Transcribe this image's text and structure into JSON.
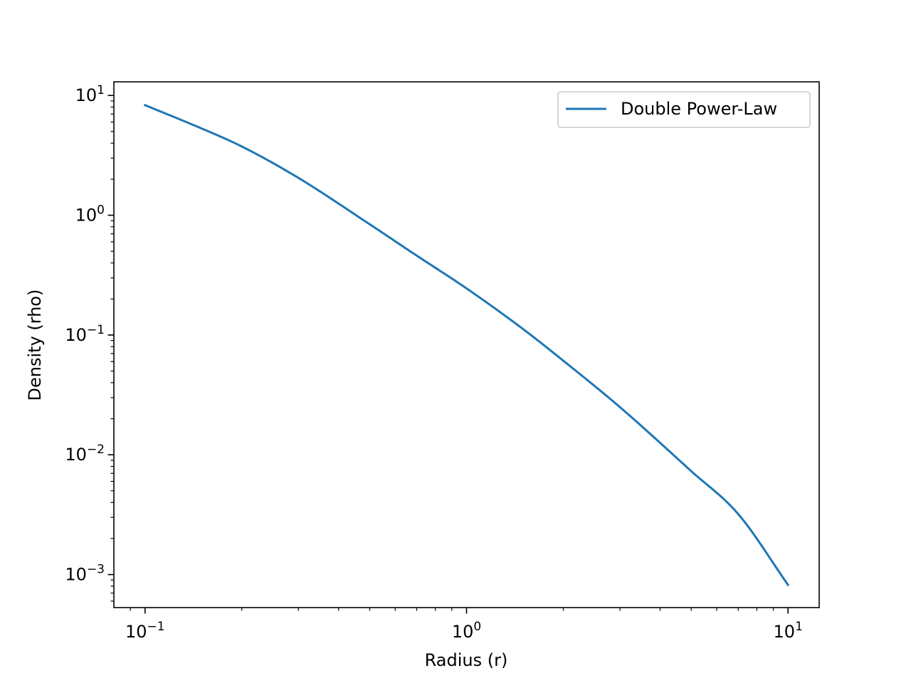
{
  "chart_data": {
    "type": "line",
    "title": "",
    "xlabel": "Radius (r)",
    "ylabel": "Density (rho)",
    "xscale": "log",
    "yscale": "log",
    "xlim": [
      0.08,
      12.5
    ],
    "ylim": [
      0.00053,
      13
    ],
    "x_ticks": [
      {
        "value": 0.1,
        "base": "10",
        "exp": "−1"
      },
      {
        "value": 1,
        "base": "10",
        "exp": "0"
      },
      {
        "value": 10,
        "base": "10",
        "exp": "1"
      }
    ],
    "y_ticks": [
      {
        "value": 0.001,
        "base": "10",
        "exp": "−3"
      },
      {
        "value": 0.01,
        "base": "10",
        "exp": "−2"
      },
      {
        "value": 0.1,
        "base": "10",
        "exp": "−1"
      },
      {
        "value": 1,
        "base": "10",
        "exp": "0"
      },
      {
        "value": 10,
        "base": "10",
        "exp": "1"
      }
    ],
    "grid": false,
    "legend_position": "top-right",
    "series": [
      {
        "name": "Double Power-Law",
        "color": "#1f77b4",
        "x": [
          0.1,
          0.15,
          0.2,
          0.3,
          0.5,
          0.7,
          1.0,
          1.5,
          2.0,
          3.0,
          5.0,
          7.0,
          10.0
        ],
        "y": [
          8.3,
          5.3,
          3.75,
          2.05,
          0.84,
          0.46,
          0.245,
          0.112,
          0.061,
          0.025,
          0.0073,
          0.0032,
          0.00082
        ]
      }
    ]
  }
}
